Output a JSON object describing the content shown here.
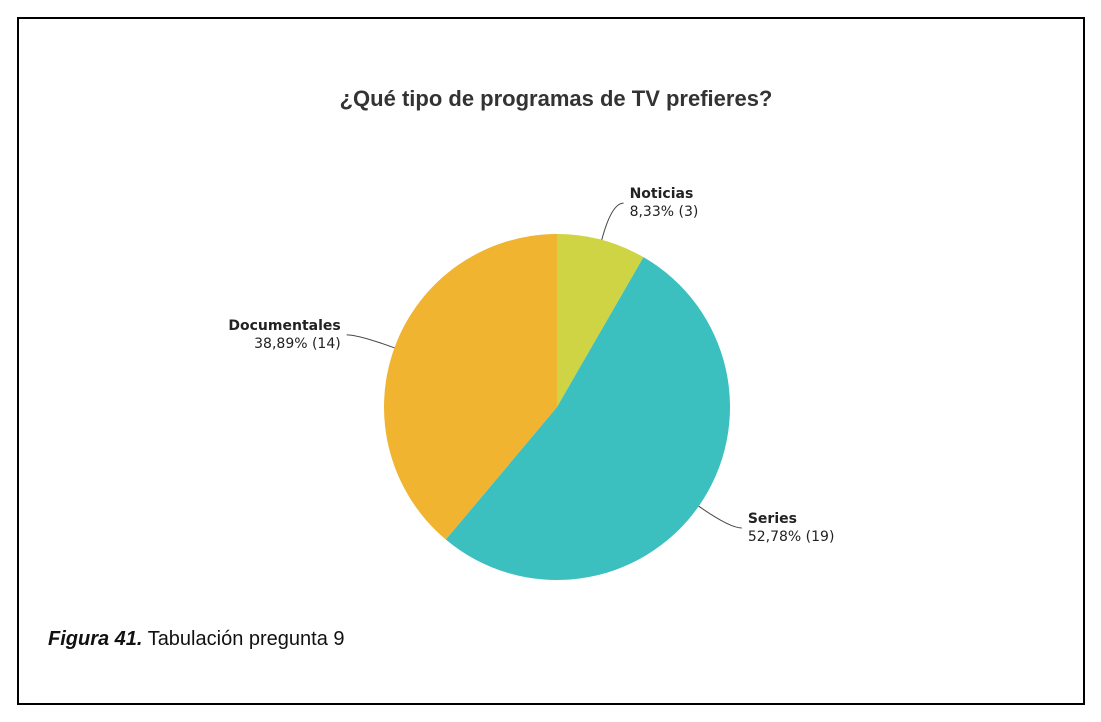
{
  "chart_data": {
    "type": "pie",
    "title": "¿Qué tipo de programas de TV prefieres?",
    "categories": [
      "Noticias",
      "Series",
      "Documentales"
    ],
    "values": [
      8.33,
      52.78,
      38.89
    ],
    "value_labels": [
      "8,33% (3)",
      "52,78% (19)",
      "38,89% (14)"
    ],
    "colors": [
      "#cfd444",
      "#3bbfbf",
      "#f0b431"
    ]
  },
  "caption": {
    "label": "Figura 41.",
    "text": "Tabulación pregunta 9"
  }
}
